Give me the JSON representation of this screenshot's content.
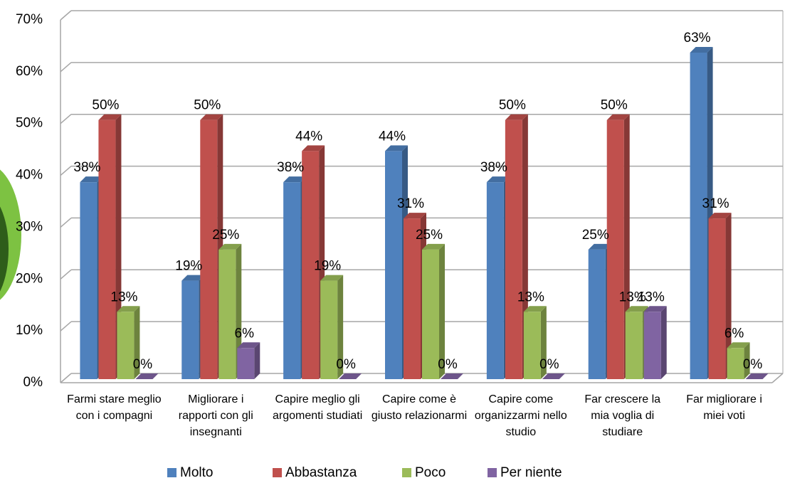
{
  "chart_data": {
    "type": "bar3d",
    "categories": [
      "Farmi stare meglio con i compagni",
      "Migliorare i rapporti con gli insegnanti",
      "Capire meglio gli argomenti studiati",
      "Capire come è giusto relazionarmi",
      "Capire come organizzarmi nello studio",
      "Far crescere la mia voglia di studiare",
      "Far migliorare i miei voti"
    ],
    "series": [
      {
        "name": "Molto",
        "color": "#4f81bd",
        "values": [
          38,
          19,
          38,
          44,
          38,
          25,
          63
        ],
        "value_labels": [
          "38%",
          "19%",
          "38%",
          "44%",
          "38%",
          "25%",
          "63%"
        ]
      },
      {
        "name": "Abbastanza",
        "color": "#c0504d",
        "values": [
          50,
          50,
          44,
          31,
          50,
          50,
          31
        ],
        "value_labels": [
          "50%",
          "50%",
          "44%",
          "31%",
          "50%",
          "50%",
          "31%"
        ]
      },
      {
        "name": "Poco",
        "color": "#9bbb59",
        "values": [
          13,
          25,
          19,
          25,
          13,
          13,
          6
        ],
        "value_labels": [
          "13%",
          "25%",
          "19%",
          "25%",
          "13%",
          "13%",
          "6%"
        ]
      },
      {
        "name": "Per niente",
        "color": "#8064a2",
        "values": [
          0,
          6,
          0,
          0,
          0,
          13,
          0
        ],
        "value_labels": [
          "0%",
          "6%",
          "0%",
          "0%",
          "0%",
          "13%",
          "0%"
        ]
      }
    ],
    "ylim": [
      0,
      70
    ],
    "yticks": [
      {
        "value": 0,
        "label": "0%"
      },
      {
        "value": 10,
        "label": "10%"
      },
      {
        "value": 20,
        "label": "20%"
      },
      {
        "value": 30,
        "label": "30%"
      },
      {
        "value": 40,
        "label": "40%"
      },
      {
        "value": 50,
        "label": "50%"
      },
      {
        "value": 60,
        "label": "60%"
      },
      {
        "value": 70,
        "label": "70%"
      }
    ],
    "grid": true,
    "legend": "bottom"
  }
}
